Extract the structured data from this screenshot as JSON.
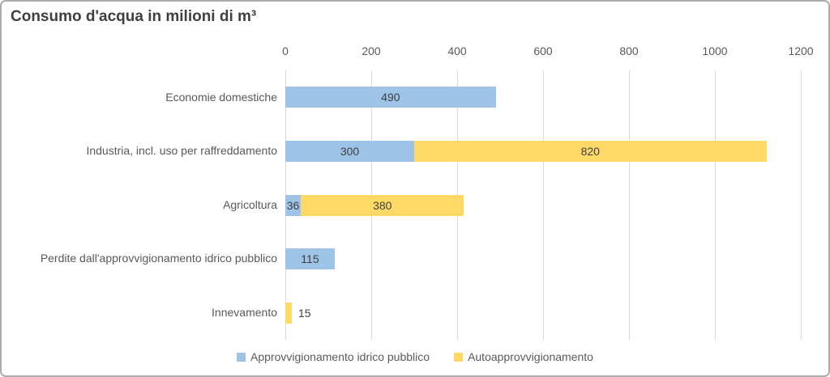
{
  "chart_data": {
    "type": "bar",
    "orientation": "horizontal",
    "stacked": true,
    "title": "Consumo d'acqua in milioni di m³",
    "xlabel": "",
    "ylabel": "",
    "xlim": [
      0,
      1200
    ],
    "xticks": [
      0,
      200,
      400,
      600,
      800,
      1000,
      1200
    ],
    "grid": true,
    "legend_position": "bottom",
    "background_color": "#FFFFFF",
    "border_color": "#ABABAB",
    "gridline_color": "#D9D9D9",
    "text_colors": {
      "title": "#404040",
      "axis": "#595959",
      "data_label": "#404040"
    },
    "categories": [
      "Economie domestiche",
      "Industria, incl. uso per raffreddamento",
      "Agricoltura",
      "Perdite dall'approvvigionamento idrico pubblico",
      "Innevamento"
    ],
    "series": [
      {
        "name": "Approvvigionamento idrico pubblico",
        "color": "#9DC3E6",
        "values": [
          490,
          300,
          36,
          115,
          null
        ]
      },
      {
        "name": "Autoapprovvigionamento",
        "color": "#FFD966",
        "values": [
          null,
          820,
          380,
          null,
          15
        ]
      }
    ]
  }
}
